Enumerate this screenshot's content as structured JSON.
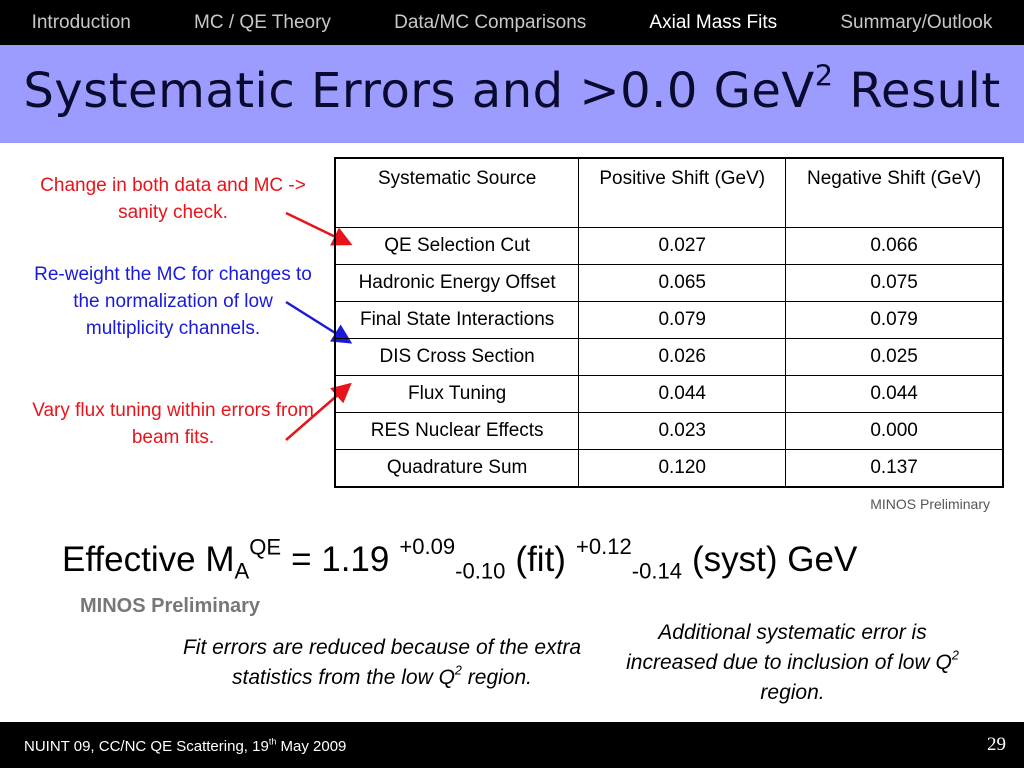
{
  "nav": [
    "Introduction",
    "MC / QE Theory",
    "Data/MC Comparisons",
    "Axial Mass Fits",
    "Summary/Outlook"
  ],
  "title": {
    "main": "Systematic Errors and >0.0 GeV",
    "sup": "2",
    "end": "Result"
  },
  "annotations": [
    {
      "text": "Change in both data and MC -> sanity check.",
      "color": "#e8141b"
    },
    {
      "text": "Re-weight the MC for changes to the normalization of low multiplicity channels.",
      "color": "#1a1adc"
    },
    {
      "text": "Vary flux tuning within errors from beam fits.",
      "color": "#e8141b"
    }
  ],
  "table": {
    "header": [
      "Systematic Source",
      "Positive Shift (GeV)",
      "Negative Shift (GeV)"
    ],
    "rows": [
      [
        "QE Selection Cut",
        "0.027",
        "0.066"
      ],
      [
        "Hadronic Energy Offset",
        "0.065",
        "0.075"
      ],
      [
        "Final State Interactions",
        "0.079",
        "0.079"
      ],
      [
        "DIS Cross Section",
        "0.026",
        "0.025"
      ],
      [
        "Flux Tuning",
        "0.044",
        "0.044"
      ],
      [
        "RES Nuclear Effects",
        "0.023",
        "0.000"
      ],
      [
        "Quadrature Sum",
        "0.120",
        "0.137"
      ]
    ],
    "caption": "MINOS Preliminary"
  },
  "equation": {
    "lead": "Effective M",
    "sub": "A",
    "sup": "QE",
    "value": "= 1.19",
    "fit_up": "+0.09",
    "fit_down": "-0.10",
    "fit_label": "(fit)",
    "syst_up": "+0.12",
    "syst_down": "-0.14",
    "syst_label": "(syst) GeV"
  },
  "preliminary": "MINOS Preliminary",
  "notes": [
    {
      "text": "Fit errors are reduced because of the extra statistics from the low Q",
      "sup": "2",
      "end": "region."
    },
    {
      "text": "Additional systematic error is increased due to inclusion of low Q",
      "sup": "2",
      "end": "region."
    }
  ],
  "footer": {
    "text": "NUINT 09, CC/NC QE Scattering, 19",
    "sup": "th",
    "end": "May 2009",
    "page": "29"
  }
}
